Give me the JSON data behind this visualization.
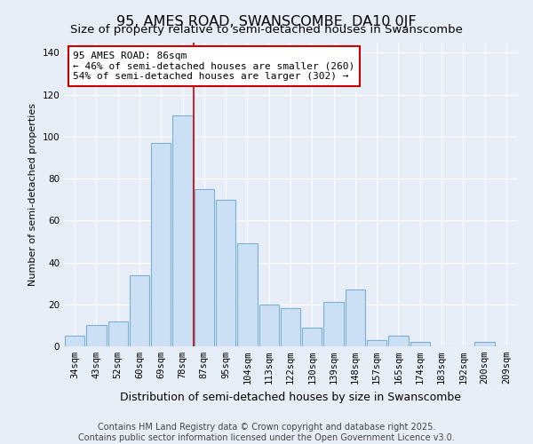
{
  "title": "95, AMES ROAD, SWANSCOMBE, DA10 0JF",
  "subtitle": "Size of property relative to semi-detached houses in Swanscombe",
  "xlabel": "Distribution of semi-detached houses by size in Swanscombe",
  "ylabel": "Number of semi-detached properties",
  "categories": [
    "34sqm",
    "43sqm",
    "52sqm",
    "60sqm",
    "69sqm",
    "78sqm",
    "87sqm",
    "95sqm",
    "104sqm",
    "113sqm",
    "122sqm",
    "130sqm",
    "139sqm",
    "148sqm",
    "157sqm",
    "165sqm",
    "174sqm",
    "183sqm",
    "192sqm",
    "200sqm",
    "209sqm"
  ],
  "values": [
    5,
    10,
    12,
    34,
    97,
    110,
    75,
    70,
    49,
    20,
    18,
    9,
    21,
    27,
    3,
    5,
    2,
    0,
    0,
    2,
    0
  ],
  "bar_color": "#cce0f5",
  "bar_edge_color": "#7aafd4",
  "highlight_bar_index": 6,
  "highlight_line_color": "#cc0000",
  "annotation_line1": "95 AMES ROAD: 86sqm",
  "annotation_line2": "← 46% of semi-detached houses are smaller (260)",
  "annotation_line3": "54% of semi-detached houses are larger (302) →",
  "annotation_box_edge_color": "#cc0000",
  "annotation_box_face_color": "#ffffff",
  "ylim": [
    0,
    145
  ],
  "yticks": [
    0,
    20,
    40,
    60,
    80,
    100,
    120,
    140
  ],
  "footer1": "Contains HM Land Registry data © Crown copyright and database right 2025.",
  "footer2": "Contains public sector information licensed under the Open Government Licence v3.0.",
  "bg_color": "#e8eef8",
  "plot_bg_color": "#e8eef8",
  "grid_color": "#ffffff",
  "title_fontsize": 11.5,
  "subtitle_fontsize": 9.5,
  "xlabel_fontsize": 9,
  "ylabel_fontsize": 8,
  "tick_fontsize": 7.5,
  "annotation_fontsize": 8,
  "footer_fontsize": 7
}
